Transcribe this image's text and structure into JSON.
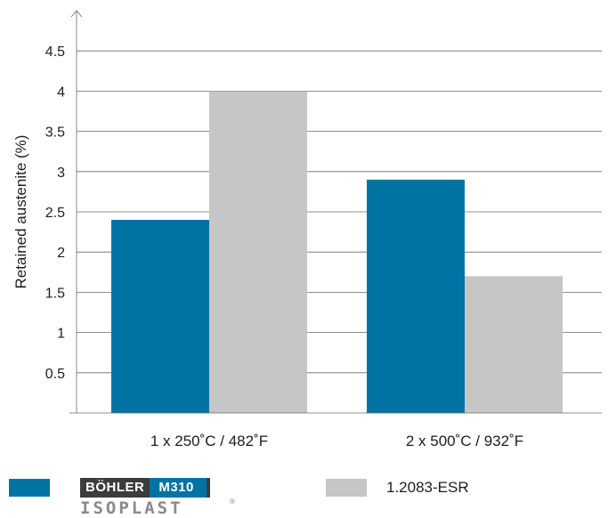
{
  "chart_data": {
    "type": "bar",
    "categories": [
      "1 x 250˚C / 482˚F",
      "2 x 500˚C / 932˚F"
    ],
    "series": [
      {
        "name": "BÖHLER M310 ISOPLAST",
        "color": "#0073a3",
        "values": [
          2.4,
          2.9
        ]
      },
      {
        "name": "1.2083-ESR",
        "color": "#c6c6c6",
        "values": [
          4.0,
          1.7
        ]
      }
    ],
    "ylabel": "Retained austenite (%)",
    "xlabel": "",
    "ylim": [
      0,
      5
    ],
    "yticks": [
      0.5,
      1,
      1.5,
      2,
      2.5,
      3,
      3.5,
      4,
      4.5
    ],
    "ytick_labels": [
      "0.5",
      "1",
      "1.5",
      "2",
      "2.5",
      "3",
      "3.5",
      "4",
      "4.5"
    ],
    "grid": true,
    "legend_position": "bottom"
  },
  "legend": {
    "brand_word": "BÖHLER",
    "brand_grade": "M310",
    "brand_sub": "ISOPLAST",
    "brand_reg": "®",
    "second_label": "1.2083-ESR"
  }
}
